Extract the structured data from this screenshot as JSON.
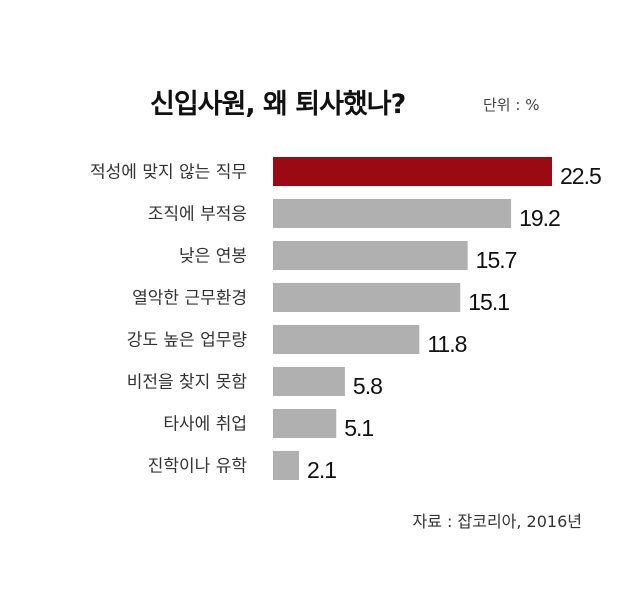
{
  "header": {
    "title": "신입사원, 왜 퇴사했나?",
    "unit": "단위 : %"
  },
  "footer": {
    "source": "자료 : 잡코리아, 2016년"
  },
  "colors": {
    "highlight": "#9b0a12",
    "bar": "#b0b0b0",
    "label": "#333333",
    "value": "#111111"
  },
  "chart_data": {
    "type": "bar",
    "orientation": "horizontal",
    "categories": [
      "적성에 맞지 않는 직무",
      "조직에 부적응",
      "낮은 연봉",
      "열악한 근무환경",
      "강도 높은 업무량",
      "비전을 찾지 못함",
      "타사에 취업",
      "진학이나 유학"
    ],
    "values": [
      22.5,
      19.2,
      15.7,
      15.1,
      11.8,
      5.8,
      5.1,
      2.1
    ],
    "value_labels": [
      "22.5",
      "19.2",
      "15.7",
      "15.1",
      "11.8",
      "5.8",
      "5.1",
      "2.1"
    ],
    "highlight_index": 0,
    "xlim": [
      0,
      22.5
    ]
  }
}
